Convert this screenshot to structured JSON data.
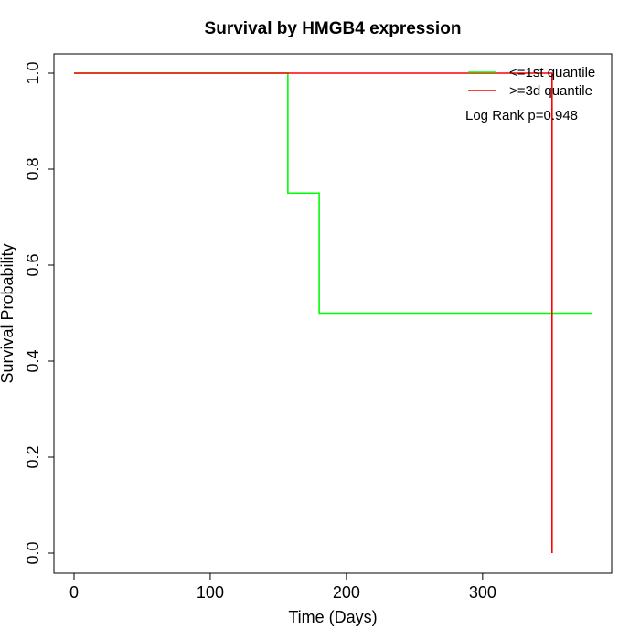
{
  "chart_data": {
    "type": "line",
    "title": "Survival by HMGB4 expression",
    "xlabel": "Time (Days)",
    "ylabel": "Survival Probability",
    "xlim": [
      0,
      380
    ],
    "ylim": [
      0,
      1
    ],
    "xticks": [
      0,
      100,
      200,
      300
    ],
    "yticks": [
      0.0,
      0.2,
      0.4,
      0.6,
      0.8,
      1.0
    ],
    "ytick_labels": [
      "0.0",
      "0.2",
      "0.4",
      "0.6",
      "0.8",
      "1.0"
    ],
    "grid": false,
    "legend_position": "top-right",
    "series": [
      {
        "name": "<=1st quantile",
        "color": "#00ff00",
        "step": true,
        "x": [
          0,
          157,
          157,
          180,
          180,
          380
        ],
        "y": [
          1.0,
          1.0,
          0.75,
          0.75,
          0.5,
          0.5
        ]
      },
      {
        "name": ">=3d quantile",
        "color": "#ff0000",
        "step": true,
        "x": [
          0,
          351,
          351
        ],
        "y": [
          1.0,
          1.0,
          0.0
        ]
      }
    ],
    "annotation": "Log Rank p=0.948"
  }
}
